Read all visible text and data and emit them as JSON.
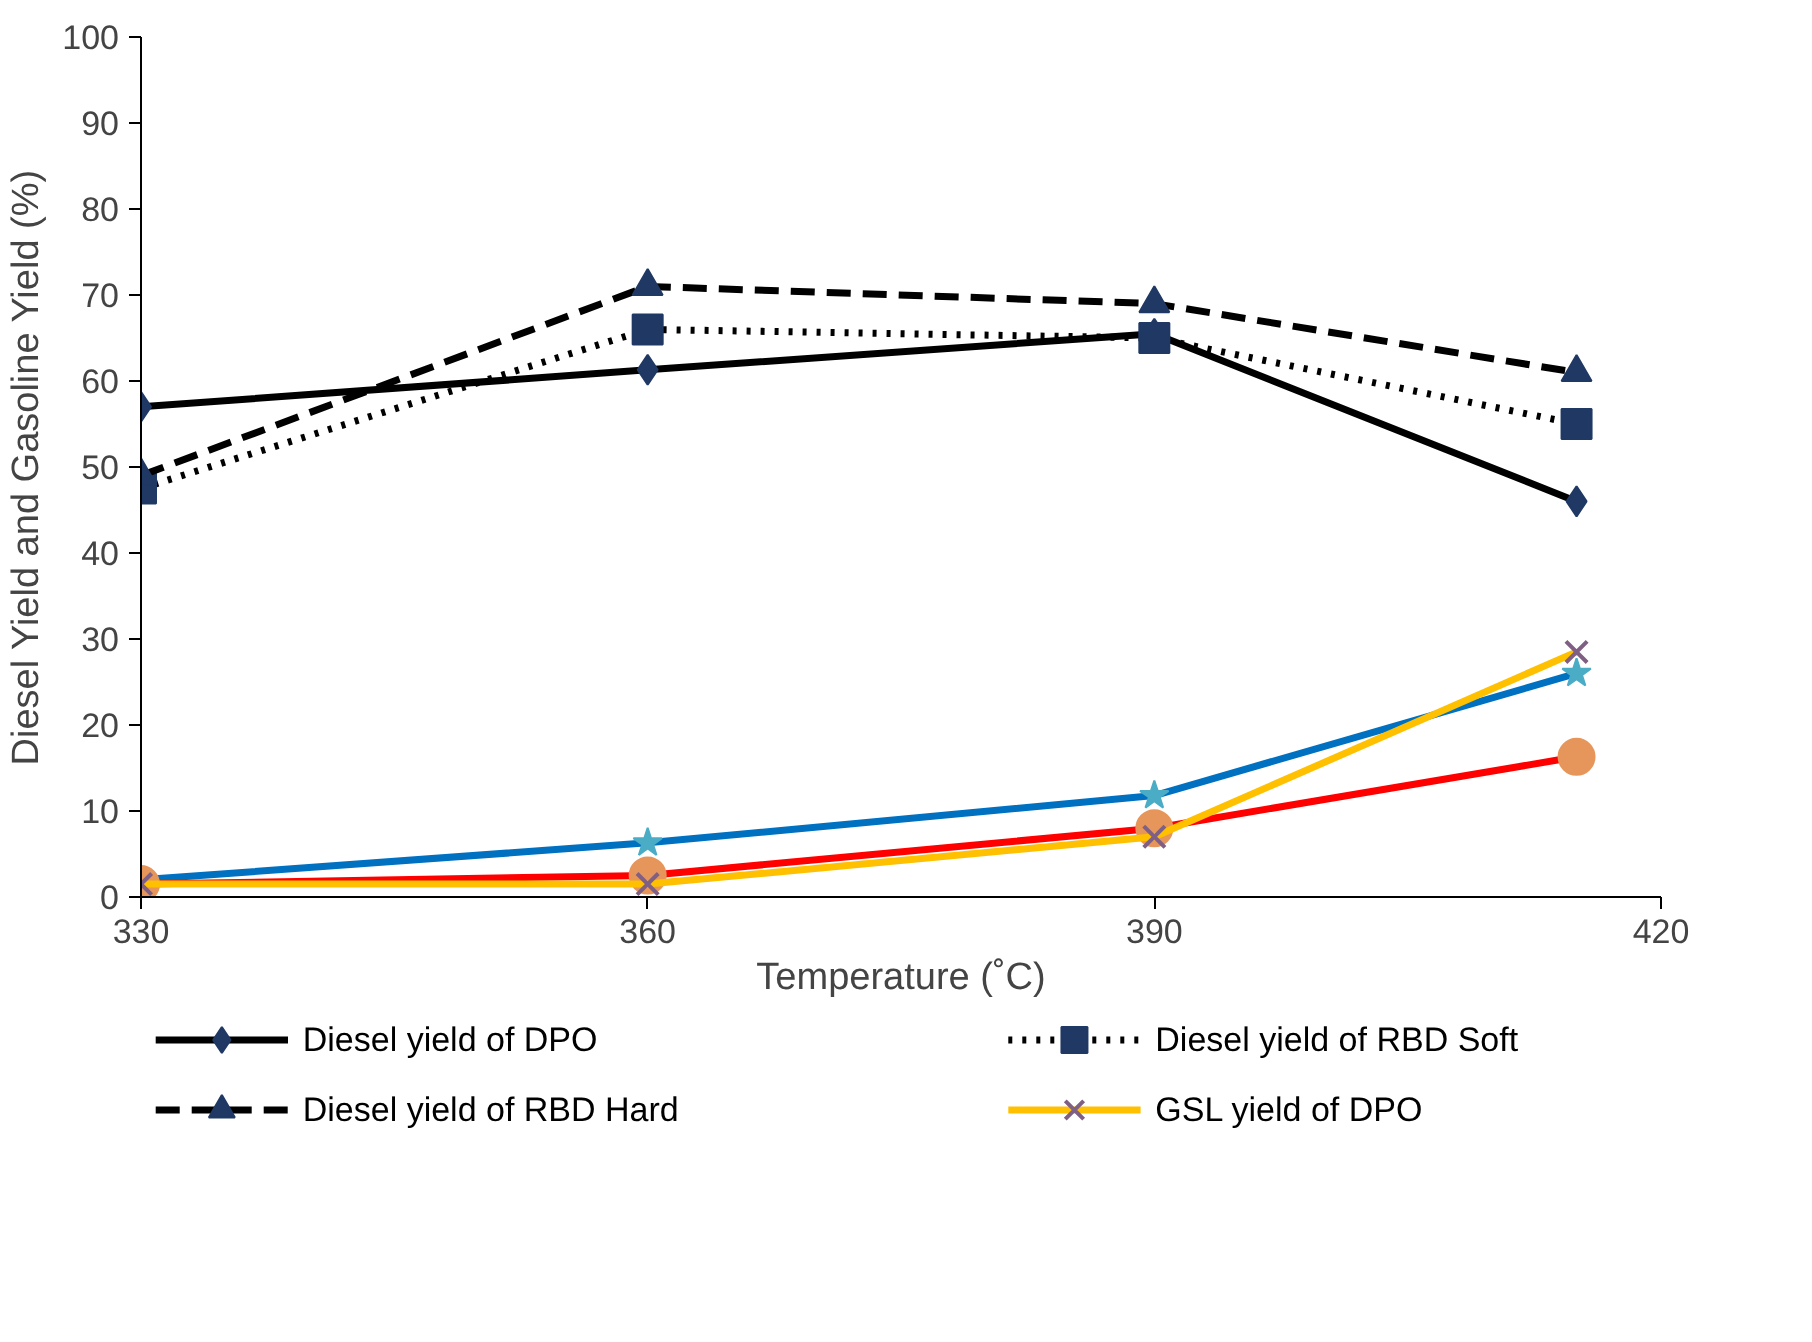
{
  "chart_data": {
    "type": "line",
    "xlabel": "Temperature (˚C)",
    "ylabel": "Diesel Yield and Gasoline Yield (%)",
    "x": [
      330,
      360,
      390,
      415
    ],
    "xlim": [
      330,
      420
    ],
    "xticks": [
      330,
      360,
      390,
      420
    ],
    "ylim": [
      0,
      100
    ],
    "yticks": [
      0,
      10,
      20,
      30,
      40,
      50,
      60,
      70,
      80,
      90,
      100
    ],
    "grid": false,
    "legend": "bottom",
    "series": [
      {
        "name": "Diesel yield of DPO",
        "color": "#000000",
        "marker": "diamond",
        "colors": [
          "#1f3864",
          "#1f3864",
          "#1f3864",
          "#1f3864"
        ],
        "line_style": "solid",
        "values": [
          57,
          61.3,
          65.5,
          46
        ]
      },
      {
        "name": "Diesel yield of RBD Soft",
        "color": "#000000",
        "marker": "square",
        "colors": [
          "#1f3864",
          "#1f3864",
          "#1f3864",
          "#1f3864"
        ],
        "line_style": "dotted",
        "values": [
          47.5,
          66,
          65,
          55
        ]
      },
      {
        "name": "Diesel yield of RBD Hard",
        "color": "#000000",
        "marker": "triangle",
        "colors": [
          "#1f3864",
          "#1f3864",
          "#1f3864",
          "#1f3864"
        ],
        "line_style": "dashed",
        "values": [
          49,
          71,
          69,
          61
        ]
      },
      {
        "color": "#0070c0",
        "marker": "star",
        "colors": [
          "#4bacc6",
          "#4bacc6",
          "#4bacc6",
          "#4bacc6"
        ],
        "line_style": "solid",
        "values": [
          2,
          6.3,
          11.8,
          26
        ]
      },
      {
        "color": "#ff0000",
        "marker": "circle",
        "colors": [
          "#e6965a",
          "#e6965a",
          "#e6965a",
          "#e6965a"
        ],
        "line_style": "solid",
        "values": [
          1.5,
          2.5,
          8,
          16.3
        ]
      },
      {
        "name": "GSL yield of DPO",
        "color": "#ffc000",
        "marker": "cross",
        "colors": [
          "#7f6084",
          "#7f6084",
          "#7f6084",
          "#7f6084"
        ],
        "line_style": "solid",
        "values": [
          1.5,
          1.5,
          7,
          28.5
        ]
      }
    ]
  }
}
